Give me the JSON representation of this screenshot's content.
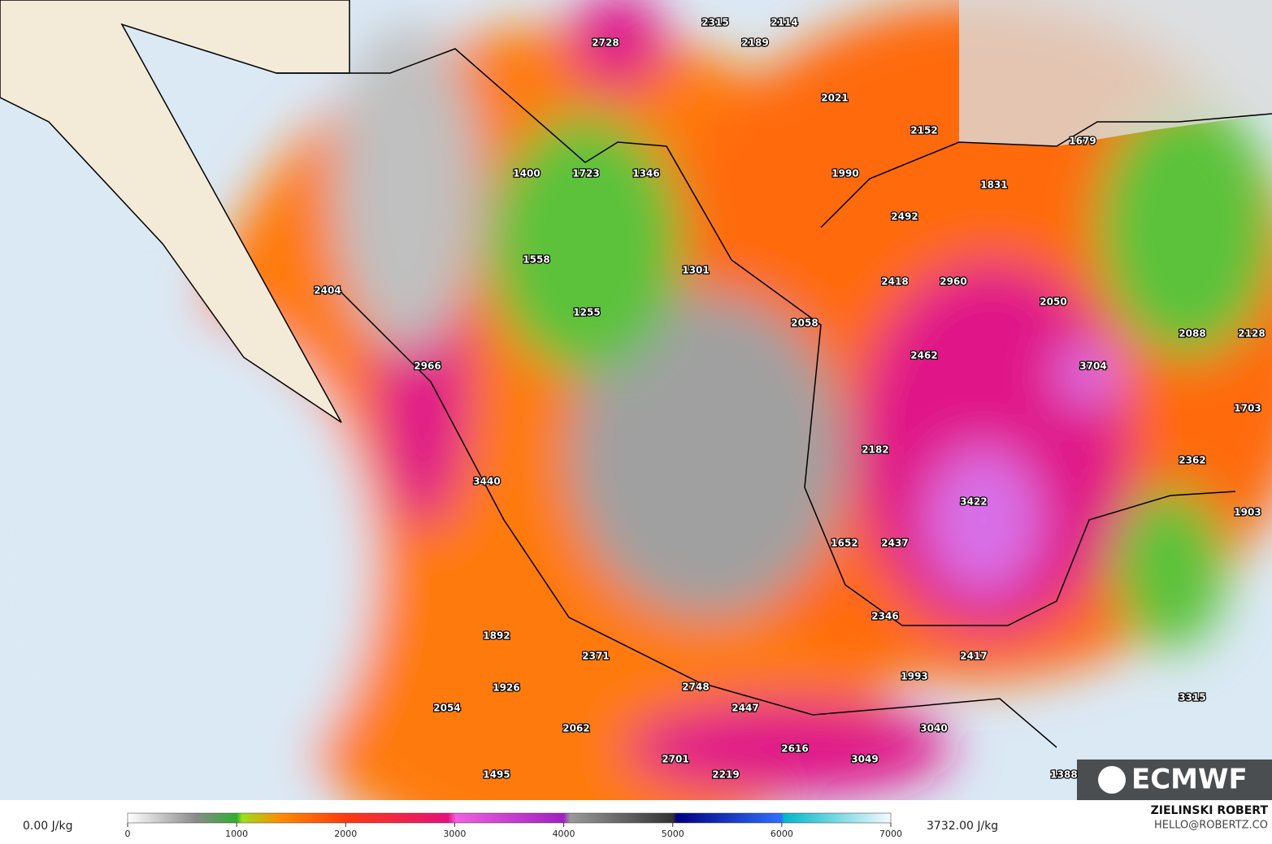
{
  "map": {
    "labels": [
      2315,
      2114,
      2728,
      2189,
      2021,
      2152,
      1679,
      1400,
      1723,
      1346,
      1990,
      1831,
      2492,
      1558,
      1301,
      2418,
      2960,
      2050,
      1255,
      2404,
      2058,
      2088,
      2128,
      2462,
      2966,
      3704,
      1703,
      2182,
      2362,
      3440,
      3422,
      1903,
      1652,
      2437,
      2346,
      1892,
      2371,
      2417,
      1993,
      2748,
      1926,
      3315,
      2447,
      2054,
      3040,
      2062,
      2616,
      2701,
      3049,
      2219,
      1495,
      1388
    ]
  },
  "logo": "ECMWF",
  "colorbar": {
    "min_label": "0.00 J/kg",
    "max_label": "3732.00 J/kg",
    "ticks": [
      0,
      1000,
      2000,
      3000,
      4000,
      5000,
      6000,
      7000
    ]
  },
  "credit": {
    "author": "ZIELINSKI ROBERT",
    "contact": "HELLO@ROBERTZ.CO"
  }
}
